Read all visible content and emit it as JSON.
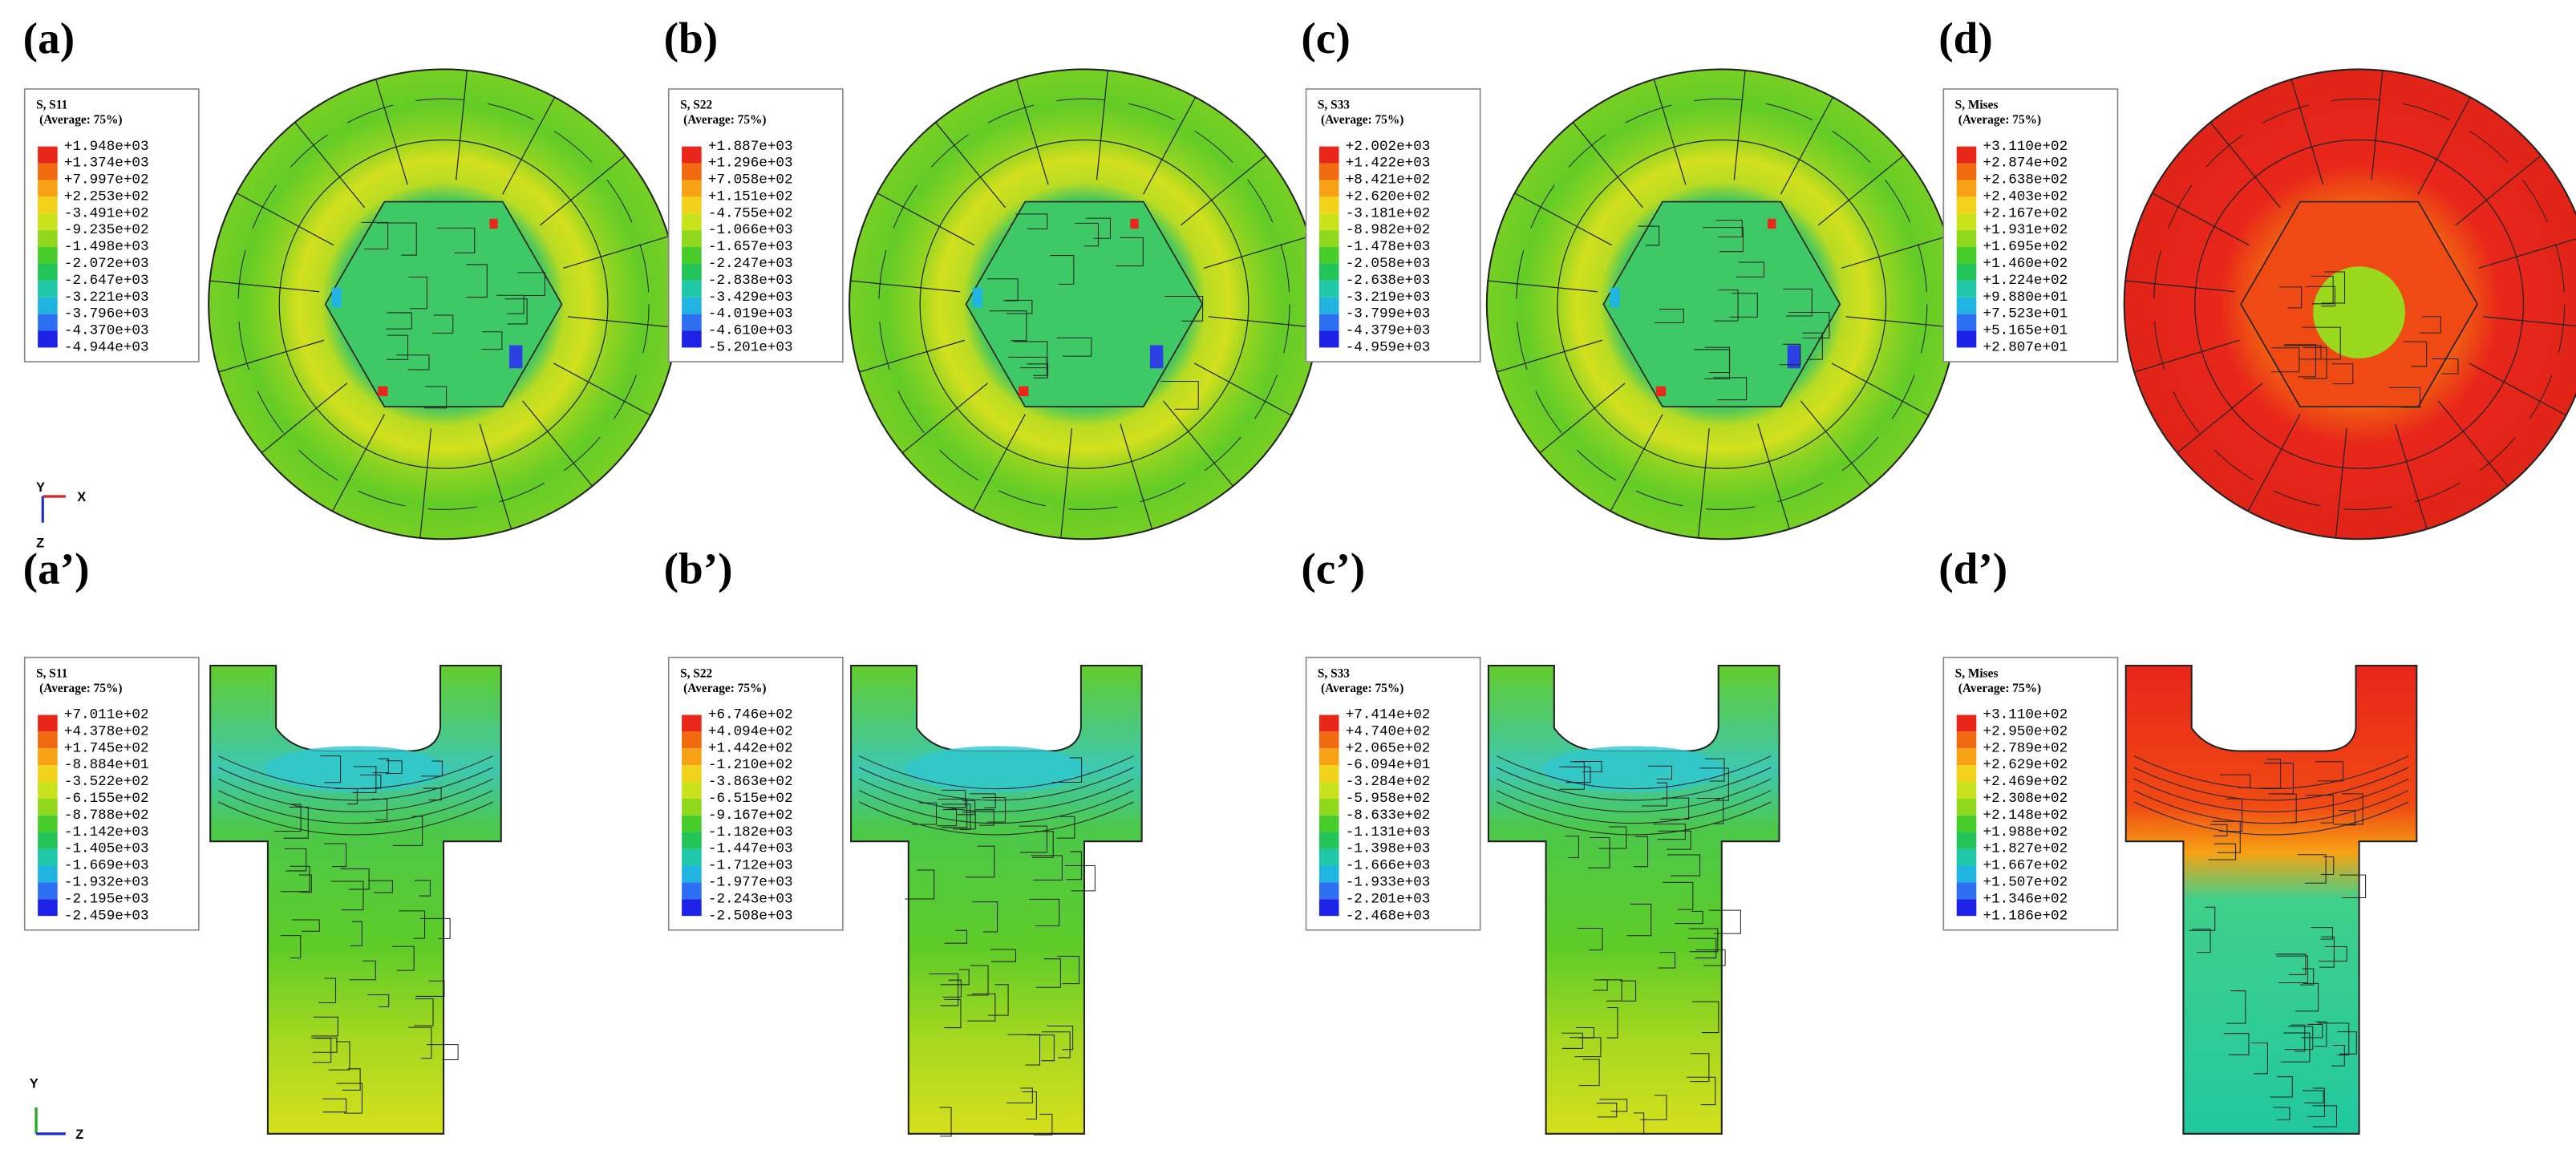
{
  "legend_colors": [
    "#e8261a",
    "#f26a10",
    "#f7a214",
    "#f2d21a",
    "#c9e21c",
    "#8fd81e",
    "#48cc2a",
    "#22c45a",
    "#1ec8a8",
    "#21b4e0",
    "#2c6ff0",
    "#1d22e6"
  ],
  "panels": [
    {
      "label": "(a)",
      "title": "S, S11",
      "subtitle": "(Average: 75%)",
      "values": [
        "+1.948e+03",
        "+1.374e+03",
        "+7.997e+02",
        "+2.253e+02",
        "-3.491e+02",
        "-9.235e+02",
        "-1.498e+03",
        "-2.072e+03",
        "-2.647e+03",
        "-3.221e+03",
        "-3.796e+03",
        "-4.370e+03",
        "-4.944e+03"
      ]
    },
    {
      "label": "(b)",
      "title": "S, S22",
      "subtitle": "(Average: 75%)",
      "values": [
        "+1.887e+03",
        "+1.296e+03",
        "+7.058e+02",
        "+1.151e+02",
        "-4.755e+02",
        "-1.066e+03",
        "-1.657e+03",
        "-2.247e+03",
        "-2.838e+03",
        "-3.429e+03",
        "-4.019e+03",
        "-4.610e+03",
        "-5.201e+03"
      ]
    },
    {
      "label": "(c)",
      "title": "S, S33",
      "subtitle": "(Average: 75%)",
      "values": [
        "+2.002e+03",
        "+1.422e+03",
        "+8.421e+02",
        "+2.620e+02",
        "-3.181e+02",
        "-8.982e+02",
        "-1.478e+03",
        "-2.058e+03",
        "-2.638e+03",
        "-3.219e+03",
        "-3.799e+03",
        "-4.379e+03",
        "-4.959e+03"
      ]
    },
    {
      "label": "(d)",
      "title": "S, Mises",
      "subtitle": "(Average: 75%)",
      "values": [
        "+3.110e+02",
        "+2.874e+02",
        "+2.638e+02",
        "+2.403e+02",
        "+2.167e+02",
        "+1.931e+02",
        "+1.695e+02",
        "+1.460e+02",
        "+1.224e+02",
        "+9.880e+01",
        "+7.523e+01",
        "+5.165e+01",
        "+2.807e+01"
      ]
    },
    {
      "label": "(a’)",
      "title": "S, S11",
      "subtitle": "(Average: 75%)",
      "values": [
        "+7.011e+02",
        "+4.378e+02",
        "+1.745e+02",
        "-8.884e+01",
        "-3.522e+02",
        "-6.155e+02",
        "-8.788e+02",
        "-1.142e+03",
        "-1.405e+03",
        "-1.669e+03",
        "-1.932e+03",
        "-2.195e+03",
        "-2.459e+03"
      ]
    },
    {
      "label": "(b’)",
      "title": "S, S22",
      "subtitle": "(Average: 75%)",
      "values": [
        "+6.746e+02",
        "+4.094e+02",
        "+1.442e+02",
        "-1.210e+02",
        "-3.863e+02",
        "-6.515e+02",
        "-9.167e+02",
        "-1.182e+03",
        "-1.447e+03",
        "-1.712e+03",
        "-1.977e+03",
        "-2.243e+03",
        "-2.508e+03"
      ]
    },
    {
      "label": "(c’)",
      "title": "S, S33",
      "subtitle": "(Average: 75%)",
      "values": [
        "+7.414e+02",
        "+4.740e+02",
        "+2.065e+02",
        "-6.094e+01",
        "-3.284e+02",
        "-5.958e+02",
        "-8.633e+02",
        "-1.131e+03",
        "-1.398e+03",
        "-1.666e+03",
        "-1.933e+03",
        "-2.201e+03",
        "-2.468e+03"
      ]
    },
    {
      "label": "(d’)",
      "title": "S, Mises",
      "subtitle": "(Average: 75%)",
      "values": [
        "+3.110e+02",
        "+2.950e+02",
        "+2.789e+02",
        "+2.629e+02",
        "+2.469e+02",
        "+2.308e+02",
        "+2.148e+02",
        "+1.988e+02",
        "+1.827e+02",
        "+1.667e+02",
        "+1.507e+02",
        "+1.346e+02",
        "+1.186e+02"
      ]
    }
  ],
  "triad_top": {
    "y": "Y",
    "x": "X",
    "z": "Z"
  },
  "triad_bottom": {
    "y": "Y",
    "z": "Z"
  }
}
